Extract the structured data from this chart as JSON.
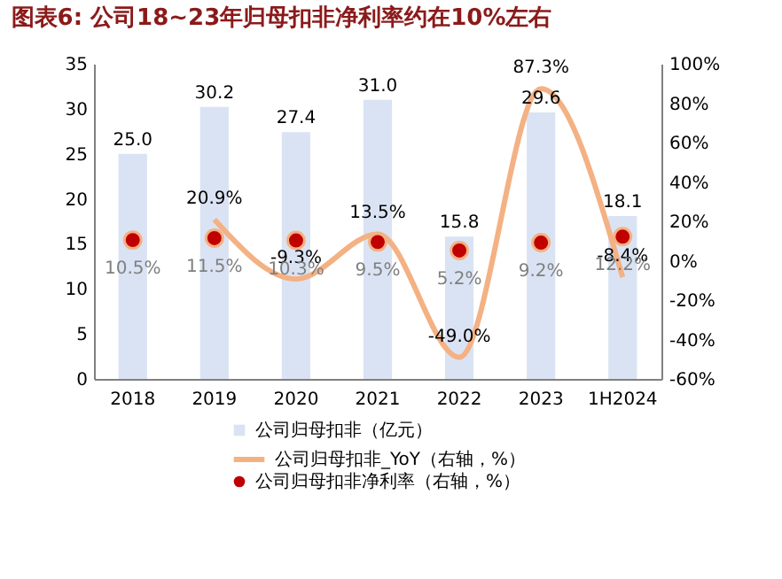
{
  "chart_data": {
    "type": "bar",
    "title": "图表6: 公司18~23年归母扣非净利率约在10%左右",
    "categories": [
      "2018",
      "2019",
      "2020",
      "2021",
      "2022",
      "2023",
      "1H2024"
    ],
    "series": [
      {
        "name": "公司归母扣非（亿元）",
        "color": "#dae3f3",
        "values": [
          25.0,
          30.2,
          27.4,
          31.0,
          15.8,
          29.6,
          18.1
        ],
        "value_labels": [
          "25.0",
          "30.2",
          "27.4",
          "31.0",
          "15.8",
          "29.6",
          "18.1"
        ]
      },
      {
        "name": "公司归母扣非_YoY（右轴，%）",
        "type": "line",
        "axis": "y2",
        "color": "#f4b183",
        "values": [
          null,
          20.9,
          -9.3,
          13.5,
          -49.0,
          87.3,
          -8.4
        ],
        "value_labels": [
          null,
          "20.9%",
          "-9.3%",
          "13.5%",
          "-49.0%",
          "87.3%",
          "-8.4%"
        ]
      },
      {
        "name": "公司归母扣非净利率（右轴，%）",
        "type": "scatter",
        "axis": "y2",
        "color": "#c00000",
        "values": [
          10.5,
          11.5,
          10.3,
          9.5,
          5.2,
          9.2,
          12.2
        ],
        "value_labels": [
          "10.5%",
          "11.5%",
          "10.3%",
          "9.5%",
          "5.2%",
          "9.2%",
          "12.2%"
        ]
      }
    ],
    "ylim": [
      0,
      35
    ],
    "yticks": [
      0,
      5,
      10,
      15,
      20,
      25,
      30,
      35
    ],
    "y2lim": [
      -60,
      100
    ],
    "y2ticks": [
      {
        "value": -60,
        "label": "-60%"
      },
      {
        "value": -40,
        "label": "-40%"
      },
      {
        "value": -20,
        "label": "-20%"
      },
      {
        "value": 0,
        "label": "0%"
      },
      {
        "value": 20,
        "label": "20%"
      },
      {
        "value": 40,
        "label": "40%"
      },
      {
        "value": 60,
        "label": "60%"
      },
      {
        "value": 80,
        "label": "80%"
      },
      {
        "value": 100,
        "label": "100%"
      }
    ],
    "legend": "bottom"
  }
}
